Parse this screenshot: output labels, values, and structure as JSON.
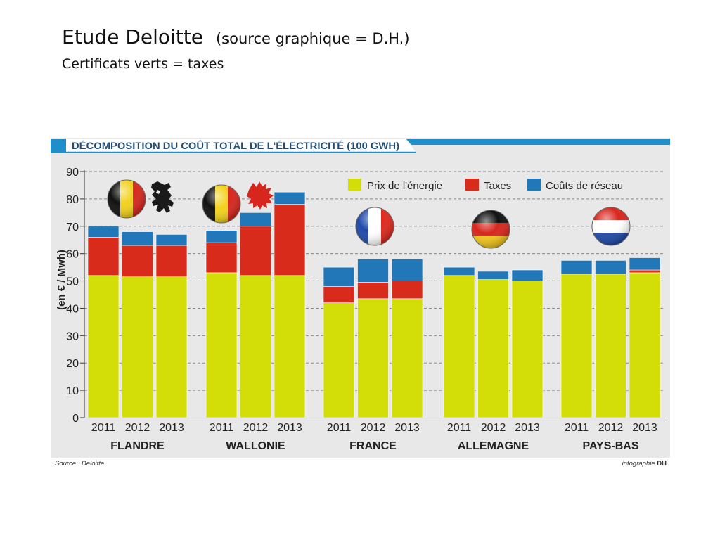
{
  "slide": {
    "title": "Etude Deloitte",
    "title_note": "(source graphique = D.H.)",
    "subtitle": "Certificats verts = taxes"
  },
  "figure": {
    "banner": "DÉCOMPOSITION DU COÛT TOTAL DE L'ÉLECTRICITÉ (100 GWH)",
    "source": "Source : Deloitte",
    "credit_prefix": "infographie",
    "credit_brand": "DH"
  },
  "colors": {
    "energy": "#d3dd08",
    "taxes": "#d92b1c",
    "network": "#2177b8",
    "panel": "#e8e8e8",
    "banner_blue": "#1f8fcb"
  },
  "icons": [
    "belgium-flag-icon",
    "flanders-lion-icon",
    "belgium-flag-icon",
    "wallonia-rooster-icon",
    "france-flag-icon",
    "germany-flag-icon",
    "netherlands-flag-icon"
  ],
  "chart_data": {
    "type": "bar",
    "stacked": true,
    "ylabel": "(en € / Mwh)",
    "ylim": [
      0,
      90
    ],
    "yticks": [
      0,
      10,
      20,
      30,
      40,
      50,
      60,
      70,
      80,
      90
    ],
    "grid": true,
    "legend_position": "top-right",
    "groups": [
      "FLANDRE",
      "WALLONIE",
      "FRANCE",
      "ALLEMAGNE",
      "PAYS-BAS"
    ],
    "years": [
      "2011",
      "2012",
      "2013"
    ],
    "series": [
      {
        "name": "Prix de l'énergie",
        "color": "#d3dd08",
        "values": [
          [
            52,
            51.5,
            51.5
          ],
          [
            53,
            52,
            52
          ],
          [
            42,
            43.5,
            43.5
          ],
          [
            52,
            50.5,
            50
          ],
          [
            52.5,
            52.5,
            53
          ]
        ]
      },
      {
        "name": "Taxes",
        "color": "#d92b1c",
        "values": [
          [
            14,
            11.5,
            11.5
          ],
          [
            11,
            18,
            26
          ],
          [
            6,
            6,
            6.5
          ],
          [
            0,
            0,
            0
          ],
          [
            0,
            0,
            1
          ]
        ]
      },
      {
        "name": "Coûts de réseau",
        "color": "#2177b8",
        "values": [
          [
            4,
            5,
            4
          ],
          [
            4.5,
            5,
            4.5
          ],
          [
            7,
            8.5,
            8
          ],
          [
            3,
            3,
            4
          ],
          [
            5,
            5,
            4.5
          ]
        ]
      }
    ]
  }
}
